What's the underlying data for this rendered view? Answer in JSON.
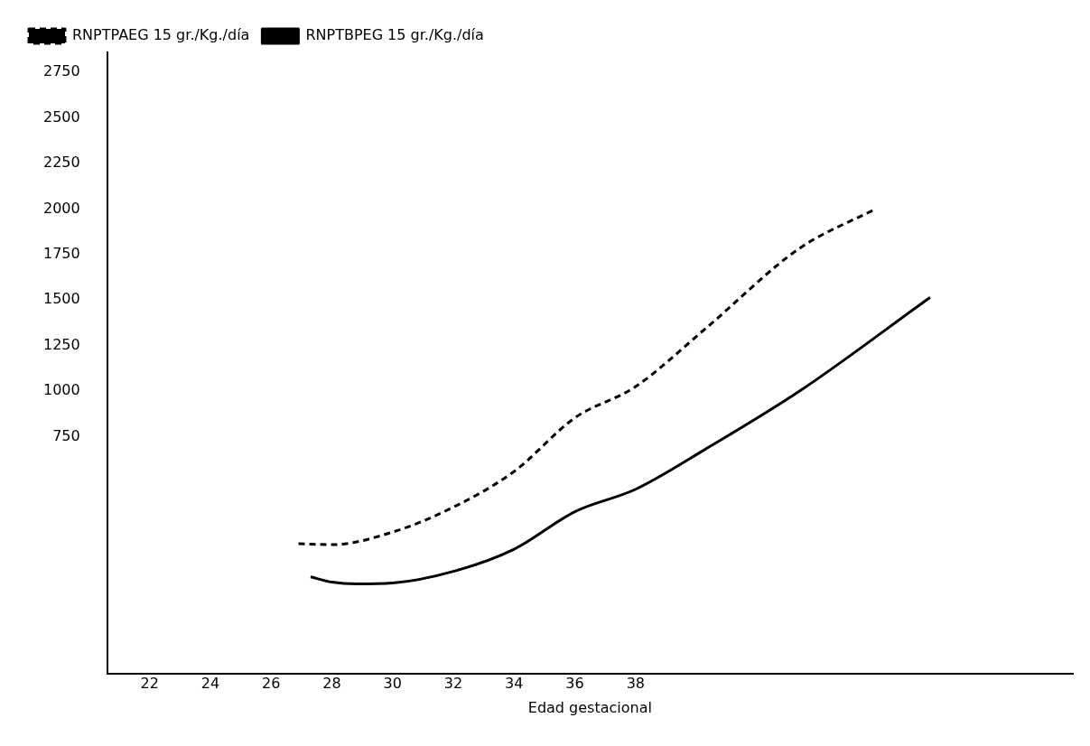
{
  "chart_data": {
    "type": "line",
    "xlabel": "Edad gestacional",
    "xlim": [
      20.6,
      52.4
    ],
    "xticks": [
      22,
      24,
      26,
      28,
      30,
      32,
      34,
      36,
      38
    ],
    "ylim": [
      -550,
      2860
    ],
    "yticks": [
      750,
      1000,
      1250,
      1500,
      1750,
      2000,
      2250,
      2500,
      2750
    ],
    "grid": false,
    "legend": "top left",
    "marker": "none",
    "series": [
      {
        "name": "RNPTPAEG 15 gr./Kg./día",
        "color": "#000000",
        "line_style": "dashed",
        "x": [
          26.9,
          28,
          30,
          32,
          34,
          36,
          38,
          40.3,
          43.4,
          45.9
        ],
        "values": [
          162,
          157,
          226,
          363,
          559,
          853,
          1025,
          1343,
          1784,
          2000
        ]
      },
      {
        "name": "RNPTBPEG 15 gr./Kg./día",
        "color": "#000000",
        "line_style": "solid",
        "x": [
          27.3,
          28,
          28.8,
          30,
          32,
          34,
          36,
          38,
          40.3,
          43.4,
          47.7
        ],
        "values": [
          -20,
          -49,
          -59,
          -54,
          10,
          132,
          338,
          461,
          681,
          1000,
          1515
        ]
      }
    ]
  }
}
